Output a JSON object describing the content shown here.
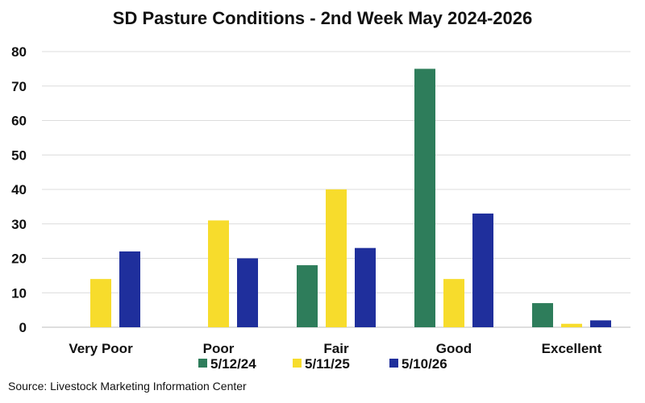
{
  "chart_data": {
    "type": "bar",
    "title": "SD Pasture Conditions - 2nd Week May 2024-2026",
    "categories": [
      "Very Poor",
      "Poor",
      "Fair",
      "Good",
      "Excellent"
    ],
    "series": [
      {
        "name": "5/12/24",
        "color": "#2e7d5b",
        "values": [
          0,
          0,
          18,
          75,
          7
        ]
      },
      {
        "name": "5/11/25",
        "color": "#f7dc2c",
        "values": [
          14,
          31,
          40,
          14,
          1
        ]
      },
      {
        "name": "5/10/26",
        "color": "#1f2f9c",
        "values": [
          22,
          20,
          23,
          33,
          2
        ]
      }
    ],
    "ylim": [
      0,
      80
    ],
    "yticks": [
      0,
      10,
      20,
      30,
      40,
      50,
      60,
      70,
      80
    ],
    "grid": "horizontal",
    "legend": "bottom"
  },
  "source": "Source: Livestock Marketing Information Center"
}
